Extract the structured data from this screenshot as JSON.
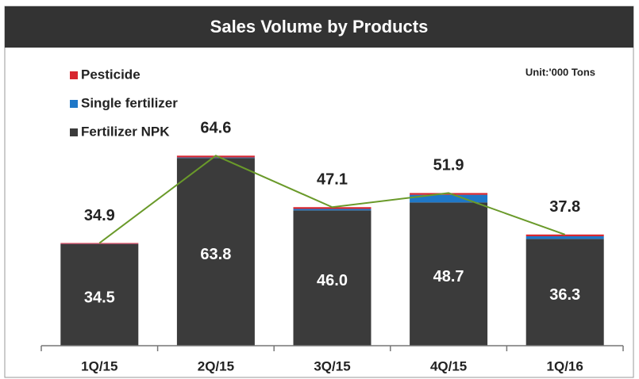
{
  "chart_data": {
    "type": "stacked-bar-line",
    "title": "Sales Volume by Products",
    "unit_label": "Unit:'000 Tons",
    "categories": [
      "1Q/15",
      "2Q/15",
      "3Q/15",
      "4Q/15",
      "1Q/16"
    ],
    "series": [
      {
        "name": "Fertilizer NPK",
        "color": "#3b3b3b",
        "values": [
          34.5,
          63.8,
          46,
          48.7,
          36.3
        ],
        "value_labels": [
          "34.5",
          "63.8",
          "46.0",
          "48.7",
          "36.3"
        ]
      },
      {
        "name": "Single fertilizer",
        "color": "#1f78c8",
        "values": [
          0.1,
          0.2,
          0.5,
          2.6,
          0.9
        ]
      },
      {
        "name": "Pesticide",
        "color": "#d7262f",
        "values": [
          0.3,
          0.6,
          0.6,
          0.6,
          0.6
        ]
      }
    ],
    "totals": {
      "color": "#6a9a2a",
      "values": [
        34.9,
        64.6,
        47.1,
        51.9,
        37.8
      ],
      "value_labels": [
        "34.9",
        "64.6",
        "47.1",
        "51.9",
        "37.8"
      ]
    },
    "ylim": [
      0,
      100
    ]
  }
}
